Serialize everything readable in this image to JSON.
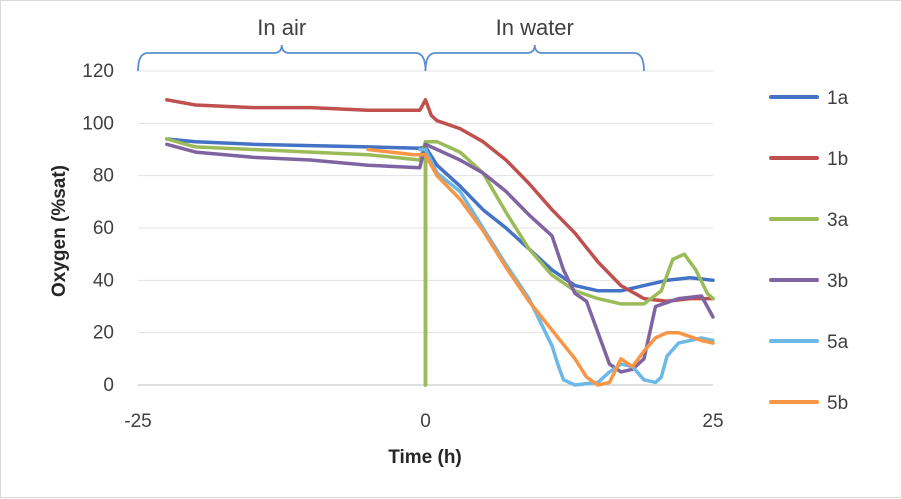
{
  "chart_data": {
    "type": "line",
    "title": "",
    "xlabel": "Time (h)",
    "ylabel": "Oxygen (%sat)",
    "xlim": [
      -25,
      25
    ],
    "ylim": [
      0,
      120
    ],
    "xticks": [
      -25,
      0,
      25
    ],
    "yticks": [
      0,
      20,
      40,
      60,
      80,
      100,
      120
    ],
    "grid": "horizontal",
    "legend_position": "right",
    "annotations": [
      {
        "text": "In air",
        "x_range": [
          -25,
          0
        ]
      },
      {
        "text": "In water",
        "x_range": [
          0,
          19
        ]
      }
    ],
    "series": [
      {
        "name": "1a",
        "color": "#4472C4",
        "points": [
          [
            -22.5,
            94
          ],
          [
            -20,
            93
          ],
          [
            -15,
            92
          ],
          [
            -10,
            91.5
          ],
          [
            -5,
            91
          ],
          [
            -0.5,
            90.5
          ],
          [
            0,
            91
          ],
          [
            0,
            0
          ],
          [
            0,
            91
          ],
          [
            1,
            84
          ],
          [
            3,
            76
          ],
          [
            5,
            67
          ],
          [
            7,
            60
          ],
          [
            9,
            52
          ],
          [
            11,
            44
          ],
          [
            13,
            38
          ],
          [
            15,
            36
          ],
          [
            17,
            36
          ],
          [
            19,
            38
          ],
          [
            21,
            40
          ],
          [
            23,
            41
          ],
          [
            25,
            40
          ]
        ]
      },
      {
        "name": "1b",
        "color": "#C0504D",
        "points": [
          [
            -22.5,
            109
          ],
          [
            -20,
            107
          ],
          [
            -15,
            106
          ],
          [
            -10,
            106
          ],
          [
            -5,
            105
          ],
          [
            -0.5,
            105
          ],
          [
            0,
            109
          ],
          [
            0.5,
            103
          ],
          [
            1,
            101
          ],
          [
            3,
            98
          ],
          [
            5,
            93
          ],
          [
            7,
            86
          ],
          [
            9,
            77
          ],
          [
            11,
            67
          ],
          [
            13,
            58
          ],
          [
            15,
            47
          ],
          [
            17,
            38
          ],
          [
            19,
            33
          ],
          [
            21,
            32
          ],
          [
            23,
            33
          ],
          [
            25,
            33
          ]
        ]
      },
      {
        "name": "3a",
        "color": "#9BBB59",
        "points": [
          [
            -22.5,
            94
          ],
          [
            -20,
            91
          ],
          [
            -15,
            90
          ],
          [
            -10,
            89
          ],
          [
            -5,
            88
          ],
          [
            -0.5,
            86
          ],
          [
            0,
            93
          ],
          [
            0,
            0
          ],
          [
            0,
            93
          ],
          [
            1,
            93
          ],
          [
            3,
            89
          ],
          [
            5,
            81
          ],
          [
            7,
            66
          ],
          [
            9,
            52
          ],
          [
            11,
            42
          ],
          [
            13,
            36
          ],
          [
            15,
            33
          ],
          [
            17,
            31
          ],
          [
            19,
            31
          ],
          [
            20.5,
            36
          ],
          [
            21.5,
            48
          ],
          [
            22.5,
            50
          ],
          [
            23.5,
            44
          ],
          [
            24.5,
            35
          ],
          [
            25,
            33
          ]
        ]
      },
      {
        "name": "3b",
        "color": "#8064A2",
        "points": [
          [
            -22.5,
            92
          ],
          [
            -20,
            89
          ],
          [
            -15,
            87
          ],
          [
            -10,
            86
          ],
          [
            -5,
            84
          ],
          [
            -0.5,
            83
          ],
          [
            0,
            92
          ],
          [
            1,
            90
          ],
          [
            3,
            86
          ],
          [
            5,
            81
          ],
          [
            7,
            74
          ],
          [
            9,
            65
          ],
          [
            11,
            57
          ],
          [
            12,
            44
          ],
          [
            13,
            35
          ],
          [
            14,
            32
          ],
          [
            15,
            20
          ],
          [
            16,
            8
          ],
          [
            17,
            5
          ],
          [
            18,
            6
          ],
          [
            19,
            10
          ],
          [
            20,
            30
          ],
          [
            22,
            33
          ],
          [
            24,
            34
          ],
          [
            25,
            26
          ]
        ]
      },
      {
        "name": "5a",
        "color": "#6CB8E6",
        "points": [
          [
            -0.5,
            90
          ],
          [
            0,
            90
          ],
          [
            1,
            81
          ],
          [
            3,
            74
          ],
          [
            5,
            60
          ],
          [
            7,
            46
          ],
          [
            9,
            33
          ],
          [
            10,
            24
          ],
          [
            11,
            15
          ],
          [
            11.5,
            8
          ],
          [
            12,
            2
          ],
          [
            13,
            0
          ],
          [
            15,
            1
          ],
          [
            16,
            5
          ],
          [
            17,
            8
          ],
          [
            18,
            7
          ],
          [
            19,
            2
          ],
          [
            20,
            1
          ],
          [
            20.5,
            3
          ],
          [
            21,
            11
          ],
          [
            22,
            16
          ],
          [
            23,
            17
          ],
          [
            24,
            18
          ],
          [
            25,
            17
          ]
        ]
      },
      {
        "name": "5b",
        "color": "#F79646",
        "points": [
          [
            -5,
            90
          ],
          [
            -3,
            89
          ],
          [
            -1,
            88
          ],
          [
            0,
            88
          ],
          [
            1,
            80
          ],
          [
            3,
            71
          ],
          [
            5,
            59
          ],
          [
            7,
            45
          ],
          [
            9,
            32
          ],
          [
            11,
            21
          ],
          [
            13,
            10
          ],
          [
            14,
            3
          ],
          [
            15,
            0
          ],
          [
            16,
            1
          ],
          [
            17,
            10
          ],
          [
            18,
            7
          ],
          [
            19,
            13
          ],
          [
            20,
            18
          ],
          [
            21,
            20
          ],
          [
            22,
            20
          ],
          [
            24,
            17
          ],
          [
            25,
            16
          ]
        ]
      }
    ]
  }
}
